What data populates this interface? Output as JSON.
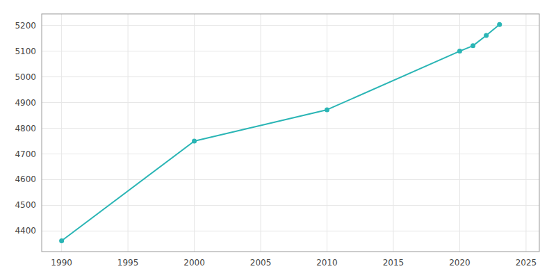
{
  "chart_data": {
    "type": "line",
    "x": [
      1990,
      2000,
      2010,
      2020,
      2021,
      2022,
      2023
    ],
    "values": [
      4362,
      4750,
      4872,
      5100,
      5121,
      5161,
      5204
    ],
    "color": "#2ab5b5",
    "marker": "circle",
    "xlim": [
      1988.5,
      2026
    ],
    "xticks": [
      1990,
      1995,
      2000,
      2005,
      2010,
      2015,
      2020,
      2025
    ],
    "ylim": [
      4320,
      5245
    ],
    "yticks": [
      4400,
      4500,
      4600,
      4700,
      4800,
      4900,
      5000,
      5100,
      5200
    ],
    "grid": true
  }
}
